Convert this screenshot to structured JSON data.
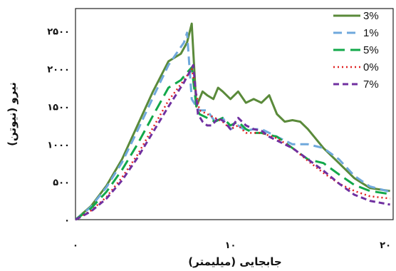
{
  "chart_data": {
    "type": "line",
    "xlabel": "جابجایی (میلیمتر)",
    "ylabel": "نیرو (نیوتن)",
    "xlim": [
      0,
      20.5
    ],
    "ylim": [
      0,
      2800
    ],
    "x_ticks": [
      {
        "value": 0,
        "label": "۰"
      },
      {
        "value": 10,
        "label": "۱۰"
      },
      {
        "value": 20,
        "label": "۲۰"
      }
    ],
    "y_ticks": [
      {
        "value": 0,
        "label": "۰"
      },
      {
        "value": 500,
        "label": "۵۰۰"
      },
      {
        "value": 1000,
        "label": "۱۰۰۰"
      },
      {
        "value": 1500,
        "label": "۱۵۰۰"
      },
      {
        "value": 2000,
        "label": "۲۰۰۰"
      },
      {
        "value": 2500,
        "label": "۲۵۰۰"
      }
    ],
    "grid": false,
    "legend_position": "top-right",
    "series": [
      {
        "name": "3%",
        "color": "#5a8a3a",
        "dash": "",
        "width": 3,
        "x": [
          0,
          1,
          2,
          3,
          4,
          5,
          6,
          6.8,
          7.2,
          7.5,
          7.8,
          8.2,
          8.5,
          8.9,
          9.2,
          9.5,
          10,
          10.5,
          11,
          11.5,
          12,
          12.5,
          13,
          13.5,
          14,
          14.5,
          15,
          16,
          17,
          18,
          19,
          20.3
        ],
        "y": [
          0,
          180,
          450,
          800,
          1250,
          1700,
          2100,
          2200,
          2350,
          2600,
          1500,
          1700,
          1650,
          1600,
          1750,
          1700,
          1600,
          1700,
          1550,
          1600,
          1550,
          1650,
          1400,
          1300,
          1320,
          1300,
          1200,
          950,
          750,
          550,
          420,
          380
        ]
      },
      {
        "name": "1%",
        "color": "#6fa8dc",
        "dash": "12,7",
        "width": 3,
        "x": [
          0,
          1,
          2,
          3,
          4,
          5,
          6,
          6.5,
          7.0,
          7.2,
          7.5,
          7.8,
          8,
          8.5,
          9,
          9.5,
          10,
          10.5,
          11,
          11.5,
          12,
          12.5,
          13,
          13.5,
          14,
          15,
          16,
          17,
          18,
          19,
          20.3
        ],
        "y": [
          0,
          170,
          430,
          760,
          1180,
          1620,
          2050,
          2200,
          2350,
          2480,
          1600,
          1500,
          1450,
          1450,
          1300,
          1350,
          1200,
          1250,
          1180,
          1200,
          1200,
          1150,
          1100,
          1050,
          1000,
          1000,
          950,
          800,
          580,
          440,
          370
        ]
      },
      {
        "name": "5%",
        "color": "#12a84a",
        "dash": "16,8",
        "width": 3,
        "x": [
          0,
          1,
          2,
          3,
          4,
          5,
          6,
          6.8,
          7.2,
          7.5,
          7.8,
          8,
          8.5,
          9,
          9.5,
          10,
          10.5,
          11,
          11.5,
          12,
          13,
          14,
          15,
          16,
          17,
          18,
          19,
          20.3
        ],
        "y": [
          0,
          150,
          370,
          660,
          1000,
          1380,
          1750,
          1850,
          1950,
          2020,
          1500,
          1400,
          1350,
          1300,
          1350,
          1250,
          1300,
          1200,
          1150,
          1150,
          1100,
          950,
          800,
          750,
          600,
          460,
          380,
          340
        ]
      },
      {
        "name": "0%",
        "color": "#e02020",
        "dash": "2,4",
        "width": 2.5,
        "x": [
          0,
          1,
          2,
          3,
          4,
          5,
          6,
          7,
          7.5,
          8,
          8.5,
          9,
          9.5,
          10,
          10.5,
          11,
          11.5,
          12,
          13,
          14,
          15,
          16,
          17,
          18,
          19,
          20.3
        ],
        "y": [
          0,
          120,
          300,
          560,
          860,
          1220,
          1580,
          1850,
          2000,
          1450,
          1400,
          1350,
          1300,
          1200,
          1250,
          1150,
          1150,
          1150,
          1080,
          950,
          780,
          620,
          480,
          380,
          310,
          280
        ]
      },
      {
        "name": "7%",
        "color": "#7030a0",
        "dash": "8,5",
        "width": 3,
        "x": [
          0,
          1,
          2,
          3,
          4,
          5,
          6,
          7,
          7.6,
          7.9,
          8.2,
          8.5,
          8.8,
          9.2,
          9.6,
          10,
          10.5,
          11,
          11.5,
          12,
          12.5,
          13,
          14,
          15,
          16,
          17,
          18,
          19,
          20.3
        ],
        "y": [
          0,
          110,
          280,
          520,
          820,
          1160,
          1500,
          1820,
          2050,
          1400,
          1300,
          1250,
          1250,
          1350,
          1300,
          1200,
          1350,
          1250,
          1200,
          1180,
          1100,
          1050,
          950,
          800,
          650,
          480,
          330,
          250,
          200
        ]
      }
    ]
  }
}
